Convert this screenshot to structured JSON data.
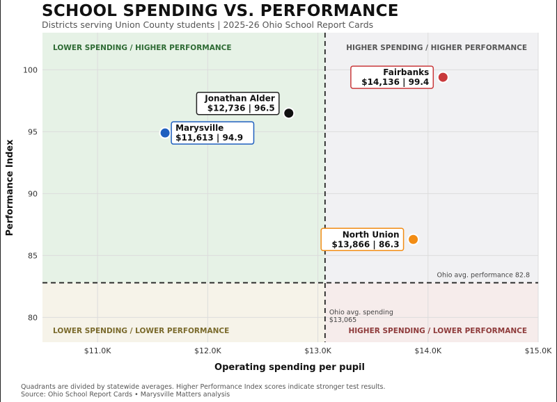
{
  "title": "SCHOOL SPENDING VS. PERFORMANCE",
  "subtitle": "Districts serving Union County students | 2025-26 Ohio School Report Cards",
  "footer": {
    "line1": "Quadrants are divided by statewide averages. Higher Performance Index scores indicate stronger test results.",
    "line2": "Source: Ohio School Report Cards • Marysville Matters analysis"
  },
  "chart_data": {
    "type": "scatter",
    "xlabel": "Operating spending per pupil",
    "ylabel": "Performance Index",
    "xlim": [
      10500,
      15000
    ],
    "ylim": [
      78,
      103
    ],
    "x_ticks": [
      {
        "value": 11000,
        "label": "$11.0K"
      },
      {
        "value": 12000,
        "label": "$12.0K"
      },
      {
        "value": 13000,
        "label": "$13.0K"
      },
      {
        "value": 14000,
        "label": "$14.0K"
      },
      {
        "value": 15000,
        "label": "$15.0K"
      }
    ],
    "y_ticks": [
      {
        "value": 80,
        "label": "80"
      },
      {
        "value": 85,
        "label": "85"
      },
      {
        "value": 90,
        "label": "90"
      },
      {
        "value": 95,
        "label": "95"
      },
      {
        "value": 100,
        "label": "100"
      }
    ],
    "grid": true,
    "reference_lines": {
      "avg_spending": {
        "value": 13065,
        "label_line1": "Ohio avg. spending",
        "label_line2": "$13,065"
      },
      "avg_performance": {
        "value": 82.8,
        "label": "Ohio avg. performance 82.8"
      }
    },
    "quadrants": [
      {
        "label": "LOWER SPENDING / HIGHER PERFORMANCE",
        "position": "top-left",
        "fill": "#e6f2e6",
        "text_color": "#2e6b34"
      },
      {
        "label": "HIGHER SPENDING / HIGHER PERFORMANCE",
        "position": "top-right",
        "fill": "#f1f1f3",
        "text_color": "#555555"
      },
      {
        "label": "LOWER SPENDING / LOWER PERFORMANCE",
        "position": "bottom-left",
        "fill": "#f6f3e9",
        "text_color": "#7a6a2c"
      },
      {
        "label": "HIGHER SPENDING / LOWER PERFORMANCE",
        "position": "bottom-right",
        "fill": "#f6eceb",
        "text_color": "#8e3b3b"
      }
    ],
    "points": [
      {
        "name": "Jonathan Alder",
        "x": 12736,
        "y": 96.5,
        "value_label": "$12,736 | 96.5",
        "color": "#111111",
        "label_side": "left",
        "box_border": "#222222"
      },
      {
        "name": "Marysville",
        "x": 11613,
        "y": 94.9,
        "value_label": "$11,613 | 94.9",
        "color": "#1f5fbf",
        "label_side": "right",
        "box_border": "#1f5fbf"
      },
      {
        "name": "Fairbanks",
        "x": 14136,
        "y": 99.4,
        "value_label": "$14,136 | 99.4",
        "color": "#c9393b",
        "label_side": "left",
        "box_border": "#c9393b"
      },
      {
        "name": "North Union",
        "x": 13866,
        "y": 86.3,
        "value_label": "$13,866 | 86.3",
        "color": "#f28c14",
        "label_side": "left",
        "box_border": "#f28c14"
      }
    ]
  }
}
